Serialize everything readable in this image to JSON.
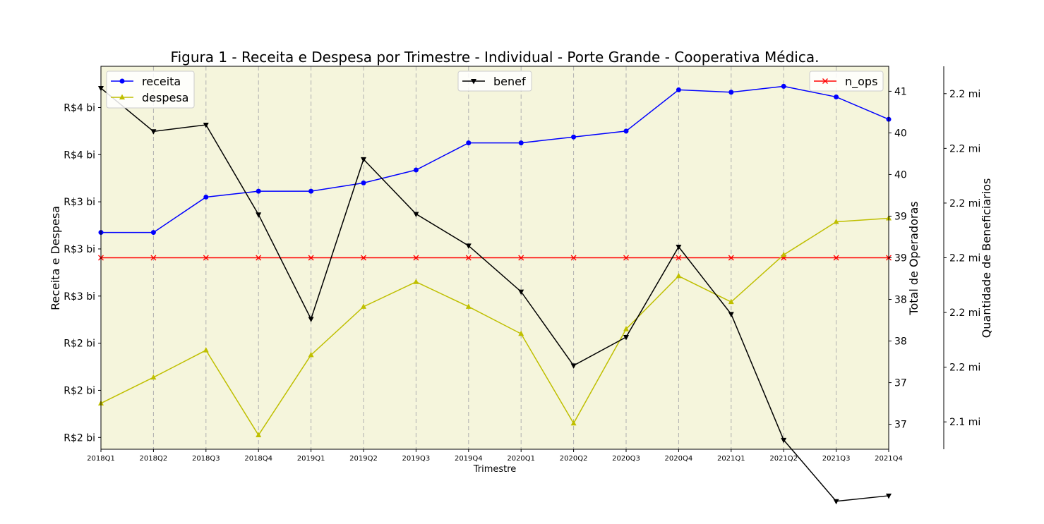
{
  "chart_data": {
    "type": "line",
    "title": "Figura 1 - Receita e Despesa por Trimestre - Individual - Porte Grande - Cooperativa Médica.",
    "xlabel": "Trimestre",
    "categories": [
      "2018Q1",
      "2018Q2",
      "2018Q3",
      "2018Q4",
      "2019Q1",
      "2019Q2",
      "2019Q3",
      "2019Q4",
      "2020Q1",
      "2020Q2",
      "2020Q3",
      "2020Q4",
      "2021Q1",
      "2021Q2",
      "2021Q3",
      "2021Q4"
    ],
    "axes": {
      "left": {
        "label": "Receita e Despesa",
        "min": 1.5,
        "max": 4.75,
        "ticks": [
          1.6,
          2.0,
          2.4,
          2.8,
          3.2,
          3.6,
          4.0,
          4.4,
          4.8
        ],
        "tick_labels": [
          "R$2 bi",
          "R$2 bi",
          "R$2 bi",
          "R$3 bi",
          "R$3 bi",
          "R$3 bi",
          "R$4 bi",
          "R$4 bi",
          "R$4 bi"
        ]
      },
      "right": {
        "label": "Total de Operadoras",
        "min": 36.7,
        "max": 41.3,
        "ticks": [
          37.0,
          37.5,
          38.0,
          38.5,
          39.0,
          39.5,
          40.0,
          40.5,
          41.0
        ],
        "tick_labels": [
          "37",
          "37",
          "38",
          "38",
          "39",
          "39",
          "40",
          "40",
          "41"
        ]
      },
      "benef": {
        "label": "Quantidade de Beneficiarios",
        "min": 2.135,
        "max": 2.205,
        "ticks": [
          2.14,
          2.15,
          2.16,
          2.17,
          2.18,
          2.19,
          2.2
        ],
        "tick_labels": [
          "2.1 mi",
          "2.2 mi",
          "2.2 mi",
          "2.2 mi",
          "2.2 mi",
          "2.2 mi",
          "2.2 mi"
        ]
      }
    },
    "series": [
      {
        "name": "receita",
        "axis": "left",
        "color": "#0000ff",
        "marker": "circle",
        "values": [
          3.34,
          3.34,
          3.64,
          3.69,
          3.69,
          3.76,
          3.87,
          4.1,
          4.1,
          4.15,
          4.2,
          4.55,
          4.53,
          4.58,
          4.49,
          4.3
        ]
      },
      {
        "name": "despesa",
        "axis": "left",
        "color": "#bfbf00",
        "marker": "triangle-up",
        "values": [
          1.89,
          2.11,
          2.34,
          1.62,
          2.3,
          2.71,
          2.92,
          2.71,
          2.48,
          1.72,
          2.52,
          2.97,
          2.75,
          3.15,
          3.43,
          3.46
        ]
      },
      {
        "name": "benef",
        "axis": "benef",
        "color": "#000000",
        "marker": "triangle-down",
        "values": [
          2.201,
          2.1931,
          2.1943,
          2.1779,
          2.1588,
          2.188,
          2.178,
          2.1722,
          2.1638,
          2.1503,
          2.1555,
          2.172,
          2.1597,
          2.1367,
          2.1255,
          2.1265
        ]
      },
      {
        "name": "n_ops",
        "axis": "right",
        "color": "#ff0000",
        "marker": "x",
        "values": [
          39,
          39,
          39,
          39,
          39,
          39,
          39,
          39,
          39,
          39,
          39,
          39,
          39,
          39,
          39,
          39
        ]
      }
    ],
    "background": "#f5f5dc",
    "grid": "vertical dashed",
    "legends": [
      {
        "position": "upper-left",
        "entries": [
          "receita",
          "despesa"
        ]
      },
      {
        "position": "upper-center",
        "entries": [
          "benef"
        ]
      },
      {
        "position": "upper-right",
        "entries": [
          "n_ops"
        ]
      }
    ]
  }
}
